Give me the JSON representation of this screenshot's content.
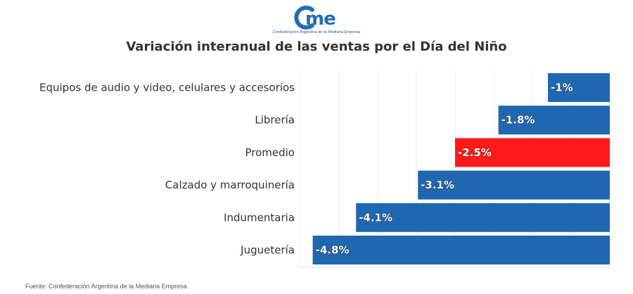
{
  "logo": {
    "word": "cme",
    "subtitle": "Confederación Argentina de la Mediana Empresa",
    "color": "#1f6fb5"
  },
  "chart_data": {
    "type": "bar",
    "orientation": "horizontal",
    "title": "Variación interanual de las ventas por el Día del Niño",
    "categories": [
      "Equipos de audio y video, celulares y accesorios",
      "Librería",
      "Promedio",
      "Calzado y marroquinería",
      "Indumentaria",
      "Juguetería"
    ],
    "values": [
      -1,
      -1.8,
      -2.5,
      -3.1,
      -4.1,
      -4.8
    ],
    "data_labels": [
      "-1%",
      "-1.8%",
      "-2.5%",
      "-3.1%",
      "-4.1%",
      "-4.8%"
    ],
    "colors": [
      "#1f68b0",
      "#1f68b0",
      "#ff1a1a",
      "#1f68b0",
      "#1f68b0",
      "#1f68b0"
    ],
    "xlim": [
      -5,
      0
    ],
    "grid": true,
    "legend": "none"
  },
  "source": "Fuente: Confederación Argentina de la Mediana Empresa"
}
